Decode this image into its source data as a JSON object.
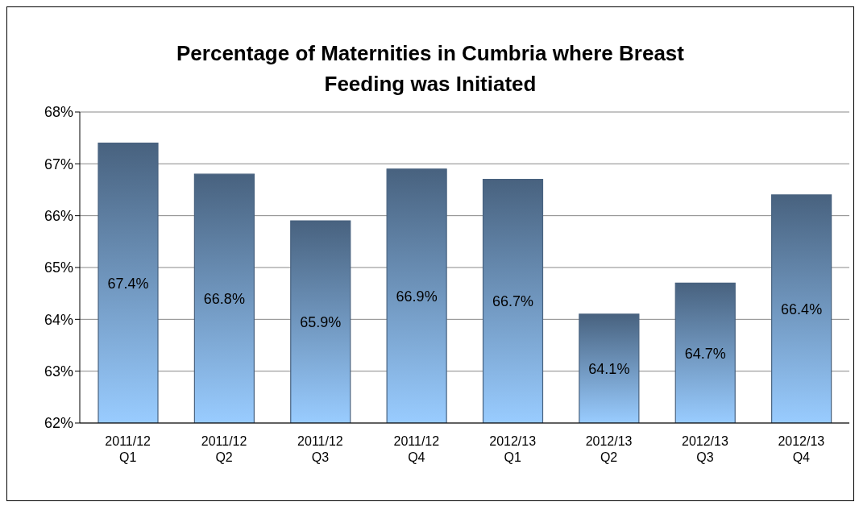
{
  "chart_data": {
    "type": "bar",
    "title": "Percentage of Maternities in Cumbria where Breast Feeding was Initiated",
    "categories": [
      "2011/12 Q1",
      "2011/12 Q2",
      "2011/12 Q3",
      "2011/12 Q4",
      "2012/13 Q1",
      "2012/13 Q2",
      "2012/13 Q3",
      "2012/13 Q4"
    ],
    "values": [
      67.4,
      66.8,
      65.9,
      66.9,
      66.7,
      64.1,
      64.7,
      66.4
    ],
    "value_labels": [
      "67.4%",
      "66.8%",
      "65.9%",
      "66.9%",
      "66.7%",
      "64.1%",
      "64.7%",
      "66.4%"
    ],
    "color": "#48627f",
    "ylim": [
      62,
      68
    ],
    "yticks": [
      {
        "value": 62,
        "label": "62%"
      },
      {
        "value": 63,
        "label": "63%"
      },
      {
        "value": 64,
        "label": "64%"
      },
      {
        "value": 65,
        "label": "65%"
      },
      {
        "value": 66,
        "label": "66%"
      },
      {
        "value": 67,
        "label": "67%"
      },
      {
        "value": 68,
        "label": "68%"
      }
    ],
    "grid": "y",
    "legend": false
  }
}
